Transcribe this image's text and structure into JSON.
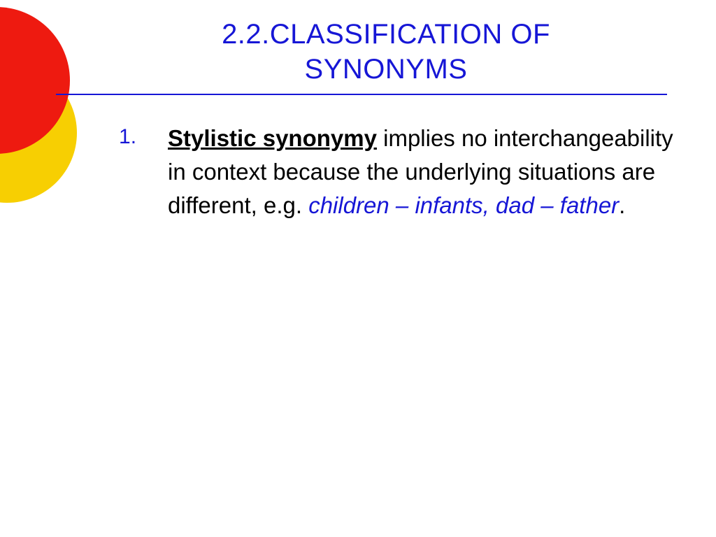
{
  "colors": {
    "title": "#1616d6",
    "rule": "#1616d6",
    "marker": "#1616d6",
    "body_text": "#000000",
    "example": "#1616d6",
    "decor_red": "#ee1a10",
    "decor_yellow": "#f7cf02",
    "background": "#ffffff"
  },
  "typography": {
    "title_fontsize": 40,
    "body_fontsize": 33,
    "font_family": "Trebuchet MS"
  },
  "title": {
    "line1": "2.2.CLASSIFICATION OF",
    "line2": "SYNONYMS"
  },
  "list": {
    "items": [
      {
        "term": "Stylistic synonymy",
        "rest": " implies no interchangeability in context because the underlying situations are different, e.g. ",
        "example": "children – infants, dad – father",
        "tail": "."
      }
    ]
  }
}
